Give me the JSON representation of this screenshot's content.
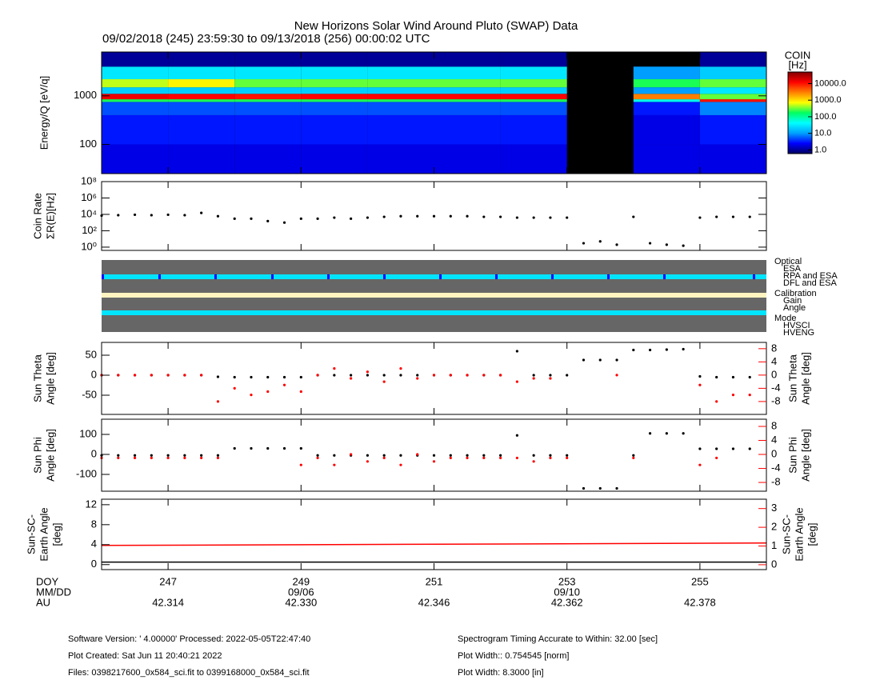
{
  "title": "New Horizons Solar Wind Around Pluto (SWAP) Data",
  "subtitle": "09/02/2018 (245) 23:59:30 to 09/13/2018 (256) 00:00:02 UTC",
  "x_axis": {
    "xlim": [
      246,
      256
    ],
    "row_labels": [
      "DOY",
      "MM/DD",
      "AU"
    ],
    "doy": [
      247,
      249,
      251,
      253,
      255
    ],
    "dates": [
      null,
      "09/06",
      null,
      "09/10",
      null
    ],
    "au": [
      "42.314",
      "42.330",
      "42.346",
      "42.362",
      "42.378"
    ]
  },
  "chart_data": [
    {
      "type": "heatmap",
      "ylabel": [
        "Energy/Q [eV/q]"
      ],
      "log": true,
      "ylim": [
        25,
        8000
      ],
      "yticks": [
        100,
        1000
      ],
      "x_edges": [
        246,
        247,
        248,
        249,
        250,
        251,
        252,
        253,
        254,
        255,
        256
      ],
      "y_edges": [
        25,
        100,
        400,
        750,
        850,
        1100,
        1500,
        2200,
        4000,
        8000
      ],
      "values": [
        [
          2,
          2,
          2,
          2,
          2,
          2,
          2,
          null,
          2,
          2
        ],
        [
          3,
          3,
          3,
          3,
          3,
          3,
          3,
          null,
          2,
          3
        ],
        [
          5,
          5,
          5,
          5,
          5,
          5,
          5,
          null,
          3,
          8
        ],
        [
          200,
          200,
          200,
          200,
          200,
          200,
          200,
          null,
          50,
          10000
        ],
        [
          15000,
          12000,
          10000,
          12000,
          12000,
          12000,
          12000,
          null,
          3000,
          300
        ],
        [
          20,
          20,
          20,
          20,
          20,
          20,
          20,
          null,
          10,
          30
        ],
        [
          500,
          800,
          300,
          300,
          300,
          300,
          300,
          null,
          200,
          300
        ],
        [
          30,
          30,
          30,
          30,
          30,
          30,
          30,
          null,
          10,
          20
        ],
        [
          1,
          1,
          1,
          1,
          1,
          1,
          1,
          null,
          null,
          1
        ]
      ],
      "colormap": [
        "#000060",
        "#0000ff",
        "#00a0ff",
        "#00ffff",
        "#00ff60",
        "#ffff00",
        "#ff8000",
        "#ff0000",
        "#800000"
      ],
      "colorbar": {
        "title": [
          "COIN",
          "[Hz]"
        ],
        "clim": [
          0.6,
          50000
        ],
        "ticks": [
          {
            "value": 1,
            "label": "1.0"
          },
          {
            "value": 10,
            "label": "10.0"
          },
          {
            "value": 100,
            "label": "100.0"
          },
          {
            "value": 1000,
            "label": "1000.0"
          },
          {
            "value": 10000,
            "label": "10000.0"
          }
        ]
      }
    },
    {
      "type": "scatter",
      "ylabel": [
        "Coin Rate",
        "ΣR(E)[Hz]"
      ],
      "log": true,
      "ylim": [
        0.4,
        100000000
      ],
      "yticks": [
        {
          "value": 1,
          "label": "10⁰"
        },
        {
          "value": 100,
          "label": "10²"
        },
        {
          "value": 10000,
          "label": "10⁴"
        },
        {
          "value": 1000000,
          "label": "10⁶"
        },
        {
          "value": 100000000,
          "label": "10⁸"
        }
      ],
      "x": [
        246,
        246.25,
        246.5,
        246.75,
        247,
        247.25,
        247.5,
        247.75,
        248,
        248.25,
        248.5,
        248.75,
        249,
        249.25,
        249.5,
        249.75,
        250,
        250.25,
        250.5,
        250.75,
        251,
        251.25,
        251.5,
        251.75,
        252,
        252.25,
        252.5,
        252.75,
        253,
        253.25,
        253.5,
        253.75,
        254,
        254.25,
        254.5,
        254.75,
        255,
        255.25,
        255.5,
        255.75
      ],
      "series": [
        {
          "color": "#000000",
          "values": [
            7000,
            8000,
            9000,
            8000,
            9000,
            8000,
            15000,
            6000,
            3000,
            3000,
            1500,
            1000,
            3000,
            3000,
            4000,
            3000,
            4000,
            5000,
            6000,
            6000,
            6000,
            6000,
            6000,
            5000,
            5000,
            4000,
            4000,
            4000,
            4000,
            3,
            5,
            2,
            5000,
            3,
            2,
            1.5,
            4000,
            5000,
            5000,
            5000
          ]
        }
      ]
    },
    {
      "type": "scatter",
      "ylabel": [
        "Sun Theta",
        "Angle [deg]"
      ],
      "y2label": [
        "Sun Theta",
        "Angle [deg]"
      ],
      "ylim": [
        -98,
        82
      ],
      "yticks": [
        -50,
        0,
        50
      ],
      "y2lim": [
        -11.9,
        9.9
      ],
      "y2ticks": [
        -8,
        -4,
        0,
        4,
        8
      ],
      "x": [
        246,
        246.25,
        246.5,
        246.75,
        247,
        247.25,
        247.5,
        247.75,
        248,
        248.25,
        248.5,
        248.75,
        249,
        249.25,
        249.5,
        249.75,
        250,
        250.25,
        250.5,
        250.75,
        251,
        251.25,
        251.5,
        251.75,
        252,
        252.25,
        252.5,
        252.75,
        253,
        253.25,
        253.5,
        253.75,
        254,
        254.25,
        254.5,
        254.75,
        255,
        255.25,
        255.5,
        255.75
      ],
      "series": [
        {
          "color": "#000000",
          "values": [
            0,
            0,
            0,
            0,
            0,
            0,
            0,
            -4,
            -5,
            -5,
            -5,
            -5,
            -5,
            0,
            0,
            0,
            0,
            0,
            0,
            0,
            0,
            0,
            0,
            0,
            0,
            60,
            0,
            0,
            0,
            38,
            38,
            38,
            63,
            63,
            64,
            65,
            -3,
            -5,
            -5,
            -5
          ]
        },
        {
          "color": "#ff0000",
          "axis": "y2",
          "values": [
            0,
            0,
            0,
            0,
            0,
            0,
            0,
            -8,
            -4,
            -6,
            -5,
            -3,
            -5,
            0,
            2,
            -1,
            1,
            -2,
            2,
            -1,
            0,
            0,
            0,
            0,
            0,
            -2,
            -1,
            -1,
            null,
            null,
            null,
            0,
            null,
            null,
            null,
            null,
            -3,
            -8,
            -6,
            -6
          ]
        }
      ]
    },
    {
      "type": "scatter",
      "ylabel": [
        "Sun Phi",
        "Angle [deg]"
      ],
      "y2label": [
        "Sun Phi",
        "Angle [deg]"
      ],
      "ylim": [
        -184,
        176
      ],
      "yticks": [
        -100,
        0,
        100
      ],
      "y2lim": [
        -10.5,
        10.06
      ],
      "y2ticks": [
        -8,
        -4,
        0,
        4,
        8
      ],
      "x": [
        246,
        246.25,
        246.5,
        246.75,
        247,
        247.25,
        247.5,
        247.75,
        248,
        248.25,
        248.5,
        248.75,
        249,
        249.25,
        249.5,
        249.75,
        250,
        250.25,
        250.5,
        250.75,
        251,
        251.25,
        251.5,
        251.75,
        252,
        252.25,
        252.5,
        252.75,
        253,
        253.25,
        253.5,
        253.75,
        254,
        254.25,
        254.5,
        254.75,
        255,
        255.25,
        255.5,
        255.75
      ],
      "series": [
        {
          "color": "#000000",
          "values": [
            -5,
            -5,
            -5,
            -5,
            -5,
            -5,
            -5,
            -5,
            30,
            30,
            30,
            30,
            30,
            -5,
            -5,
            -5,
            -5,
            -5,
            -5,
            -5,
            -5,
            -5,
            -5,
            -5,
            -5,
            95,
            -5,
            -5,
            -5,
            -170,
            -170,
            -170,
            -5,
            105,
            105,
            105,
            28,
            28,
            28,
            28
          ]
        },
        {
          "color": "#ff0000",
          "axis": "y2",
          "values": [
            -1,
            -1,
            -1,
            -1,
            -1,
            -1,
            -1,
            -1,
            null,
            null,
            null,
            null,
            -3,
            -1,
            -3,
            0,
            -2,
            -1,
            -3,
            0,
            -2,
            -1,
            -1,
            -1,
            -1,
            -1,
            -2,
            -1,
            -1,
            null,
            null,
            null,
            -1,
            null,
            null,
            null,
            -3,
            -1,
            null,
            null
          ]
        }
      ]
    },
    {
      "type": "line",
      "ylabel": [
        "Sun-SC-",
        "Earth Angle",
        "[deg]"
      ],
      "y2label": [
        "Sun-SC-",
        "Earth Angle",
        "[deg]"
      ],
      "ylim": [
        -1,
        13.1
      ],
      "yticks": [
        0,
        4,
        8,
        12
      ],
      "y2lim": [
        -0.26,
        3.5
      ],
      "y2ticks": [
        0,
        1,
        2,
        3
      ],
      "x": [
        246,
        256
      ],
      "series": [
        {
          "color": "#000000",
          "values": [
            0.5,
            0.5
          ]
        },
        {
          "color": "#ff0000",
          "axis": "y2",
          "values": [
            1.03,
            1.16
          ]
        }
      ]
    }
  ],
  "status_panel": {
    "legend": [
      {
        "title": "Optical",
        "items": [
          {
            "label": "ESA",
            "color": "#00ffff"
          },
          {
            "label": "RPA and ESA",
            "color": "#ff0000"
          },
          {
            "label": "DFL and ESA",
            "color": "#0000ff"
          }
        ]
      },
      {
        "title": "Calibration",
        "items": [
          {
            "label": "Gain",
            "color": "#ff0000"
          },
          {
            "label": "Angle",
            "color": "#00ffff"
          }
        ]
      },
      {
        "title": "Mode",
        "items": [
          {
            "label": "HVSCI",
            "color": "#00ffff"
          },
          {
            "label": "HVENG",
            "color": "#ff0000"
          }
        ]
      }
    ]
  },
  "footer": {
    "left": [
      "Software Version:  ' 4.00000'  Processed: 2022-05-05T22:47:40",
      "Plot Created: Sat Jun 11 20:40:21 2022",
      "Files: 0398217600_0x584_sci.fit to 0399168000_0x584_sci.fit"
    ],
    "right": [
      "Spectrogram Timing Accurate to Within: 32.00 [sec]",
      "Plot Width:: 0.754545 [norm]",
      "Plot Width: 8.3000 [in]"
    ]
  }
}
